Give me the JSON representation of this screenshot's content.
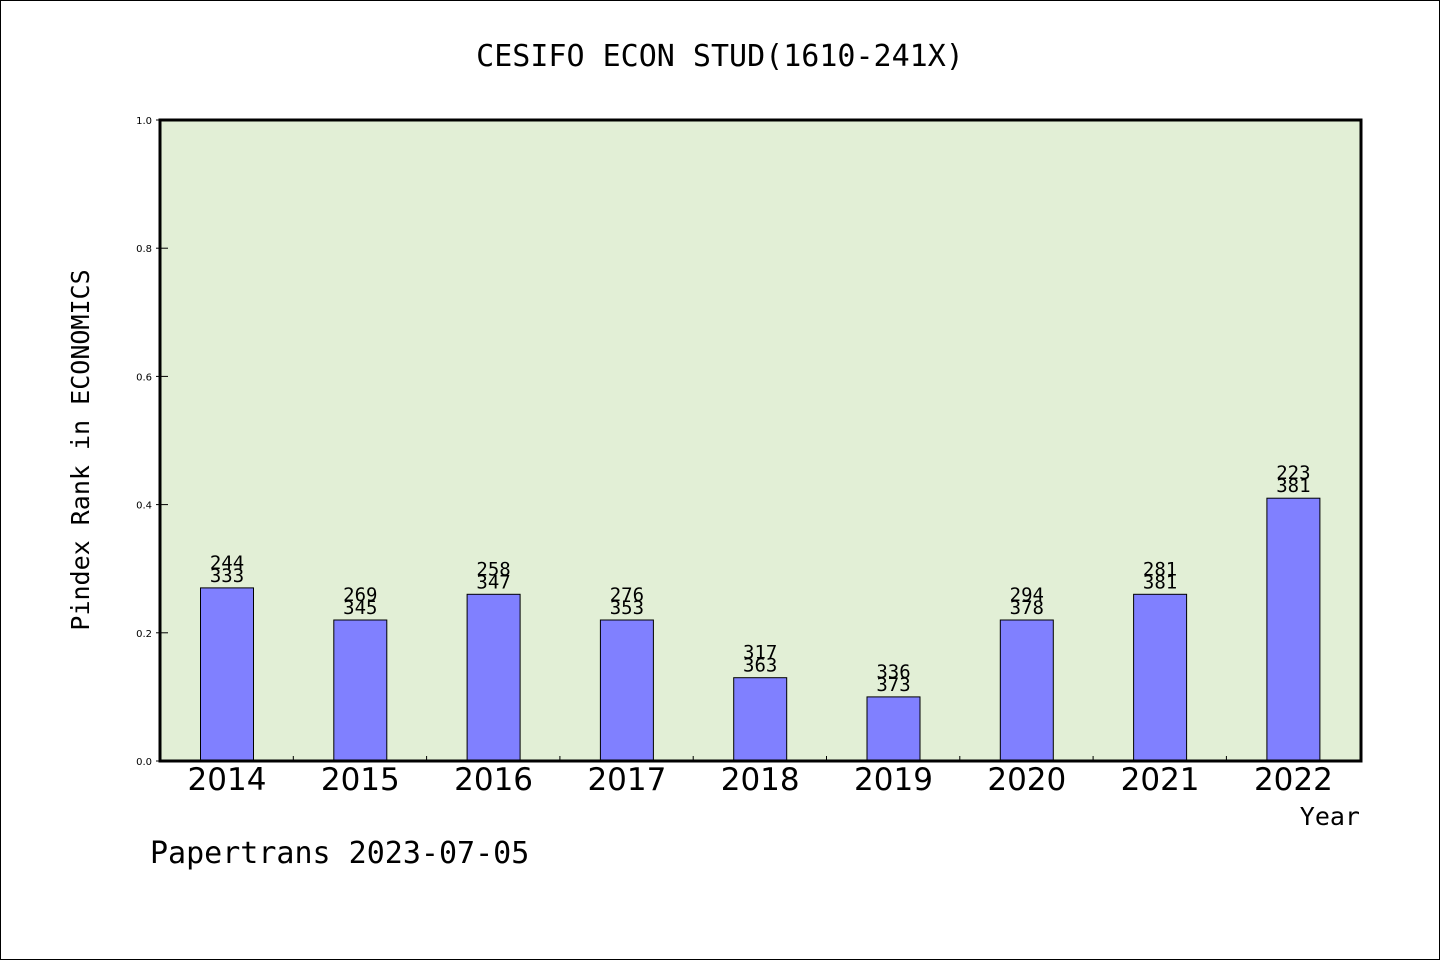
{
  "footer": "Papertrans 2023-07-05",
  "chart_data": {
    "type": "bar",
    "title": "CESIFO ECON STUD(1610-241X)",
    "xlabel": "Year",
    "ylabel": "Pindex Rank in ECONOMICS",
    "ylim": [
      0,
      1.0
    ],
    "yticks": [
      "0.0",
      "0.2",
      "0.4",
      "0.6",
      "0.8",
      "1.0"
    ],
    "grid": false,
    "categories": [
      "2014",
      "2015",
      "2016",
      "2017",
      "2018",
      "2019",
      "2020",
      "2021",
      "2022"
    ],
    "values": [
      0.27,
      0.22,
      0.26,
      0.22,
      0.13,
      0.1,
      0.22,
      0.26,
      0.41
    ],
    "label_top": [
      "244",
      "269",
      "258",
      "276",
      "317",
      "336",
      "294",
      "281",
      "223"
    ],
    "label_bottom": [
      "333",
      "345",
      "347",
      "353",
      "363",
      "373",
      "378",
      "381",
      "381"
    ],
    "colors": {
      "plot_bg": "#e2efd6",
      "bar": "#8080ff",
      "bar_edge": "#000000"
    }
  }
}
